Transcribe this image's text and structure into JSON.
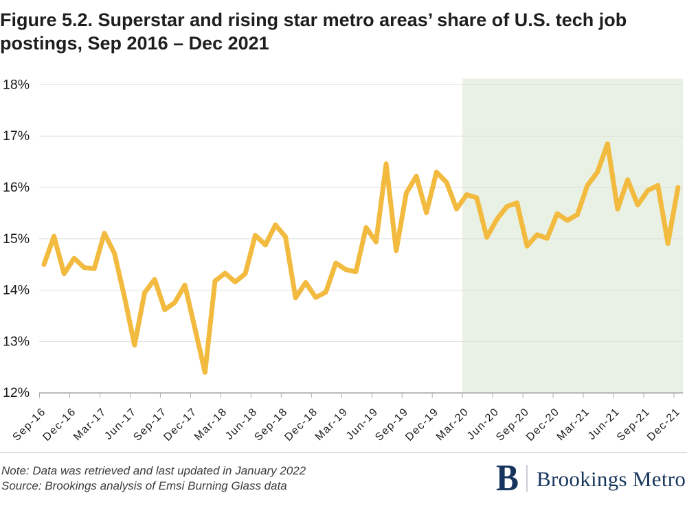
{
  "title": "Figure 5.2. Superstar and rising star metro areas’ share of U.S. tech job postings, Sep 2016 – Dec 2021",
  "footer": {
    "note": "Note: Data was retrieved and last updated in January 2022",
    "source": "Source: Brookings analysis of Emsi Burning Glass data",
    "logo_initial": "B",
    "logo_name": "Brookings Metro"
  },
  "colors": {
    "line": "#f2ba3e",
    "shading": "#e9f1e4",
    "gridline": "#dddddd",
    "axis_line": "#b0b0b0",
    "tick": "#ababab",
    "axis_label": "#1a1a1a",
    "title_text": "#1e1e1e",
    "note_text": "#3d3d3d",
    "brand_navy": "#17355c"
  },
  "chart_data": {
    "type": "line",
    "title": "Figure 5.2. Superstar and rising star metro areas’ share of U.S. tech job postings, Sep 2016 – Dec 2021",
    "xlabel": "",
    "ylabel": "",
    "ylim": [
      12,
      18
    ],
    "yticks": [
      12,
      13,
      14,
      15,
      16,
      17,
      18
    ],
    "ytick_labels": [
      "12%",
      "13%",
      "14%",
      "15%",
      "16%",
      "17%",
      "18%"
    ],
    "grid": "horizontal",
    "legend": "none",
    "x_tick_labels": [
      "Sep-16",
      "Dec-16",
      "Mar-17",
      "Jun-17",
      "Sep-17",
      "Dec-17",
      "Mar-18",
      "Jun-18",
      "Sep-18",
      "Dec-18",
      "Mar-19",
      "Jun-19",
      "Sep-19",
      "Dec-19",
      "Mar-20",
      "Jun-20",
      "Sep-20",
      "Dec-20",
      "Mar-21",
      "Jun-21",
      "Sep-21",
      "Dec-21"
    ],
    "shaded_region": {
      "from": "Mar-20",
      "to": "Dec-21",
      "color": "#e9f1e4"
    },
    "series": [
      {
        "name": "Superstar and rising star metro areas' share of U.S. tech job postings",
        "x": [
          "Sep-16",
          "Oct-16",
          "Nov-16",
          "Dec-16",
          "Jan-17",
          "Feb-17",
          "Mar-17",
          "Apr-17",
          "May-17",
          "Jun-17",
          "Jul-17",
          "Aug-17",
          "Sep-17",
          "Oct-17",
          "Nov-17",
          "Dec-17",
          "Jan-18",
          "Feb-18",
          "Mar-18",
          "Apr-18",
          "May-18",
          "Jun-18",
          "Jul-18",
          "Aug-18",
          "Sep-18",
          "Oct-18",
          "Nov-18",
          "Dec-18",
          "Jan-19",
          "Feb-19",
          "Mar-19",
          "Apr-19",
          "May-19",
          "Jun-19",
          "Jul-19",
          "Aug-19",
          "Sep-19",
          "Oct-19",
          "Nov-19",
          "Dec-19",
          "Jan-20",
          "Feb-20",
          "Mar-20",
          "Apr-20",
          "May-20",
          "Jun-20",
          "Jul-20",
          "Aug-20",
          "Sep-20",
          "Oct-20",
          "Nov-20",
          "Dec-20",
          "Jan-21",
          "Feb-21",
          "Mar-21",
          "Apr-21",
          "May-21",
          "Jun-21",
          "Jul-21",
          "Aug-21",
          "Sep-21",
          "Oct-21",
          "Nov-21",
          "Dec-21"
        ],
        "values": [
          14.5,
          15.05,
          14.32,
          14.62,
          14.44,
          14.42,
          15.11,
          14.72,
          13.87,
          12.93,
          13.95,
          14.21,
          13.62,
          13.76,
          14.1,
          13.26,
          12.4,
          14.18,
          14.33,
          14.16,
          14.32,
          15.07,
          14.88,
          15.27,
          15.04,
          13.85,
          14.15,
          13.86,
          13.96,
          14.53,
          14.4,
          14.36,
          15.22,
          14.94,
          16.46,
          14.77,
          15.89,
          16.22,
          15.51,
          16.3,
          16.1,
          15.58,
          15.86,
          15.8,
          15.03,
          15.38,
          15.63,
          15.7,
          14.86,
          15.08,
          15.01,
          15.49,
          15.36,
          15.47,
          16.04,
          16.3,
          16.85,
          15.58,
          16.15,
          15.66,
          15.94,
          16.04,
          14.91,
          16.0
        ]
      }
    ]
  }
}
